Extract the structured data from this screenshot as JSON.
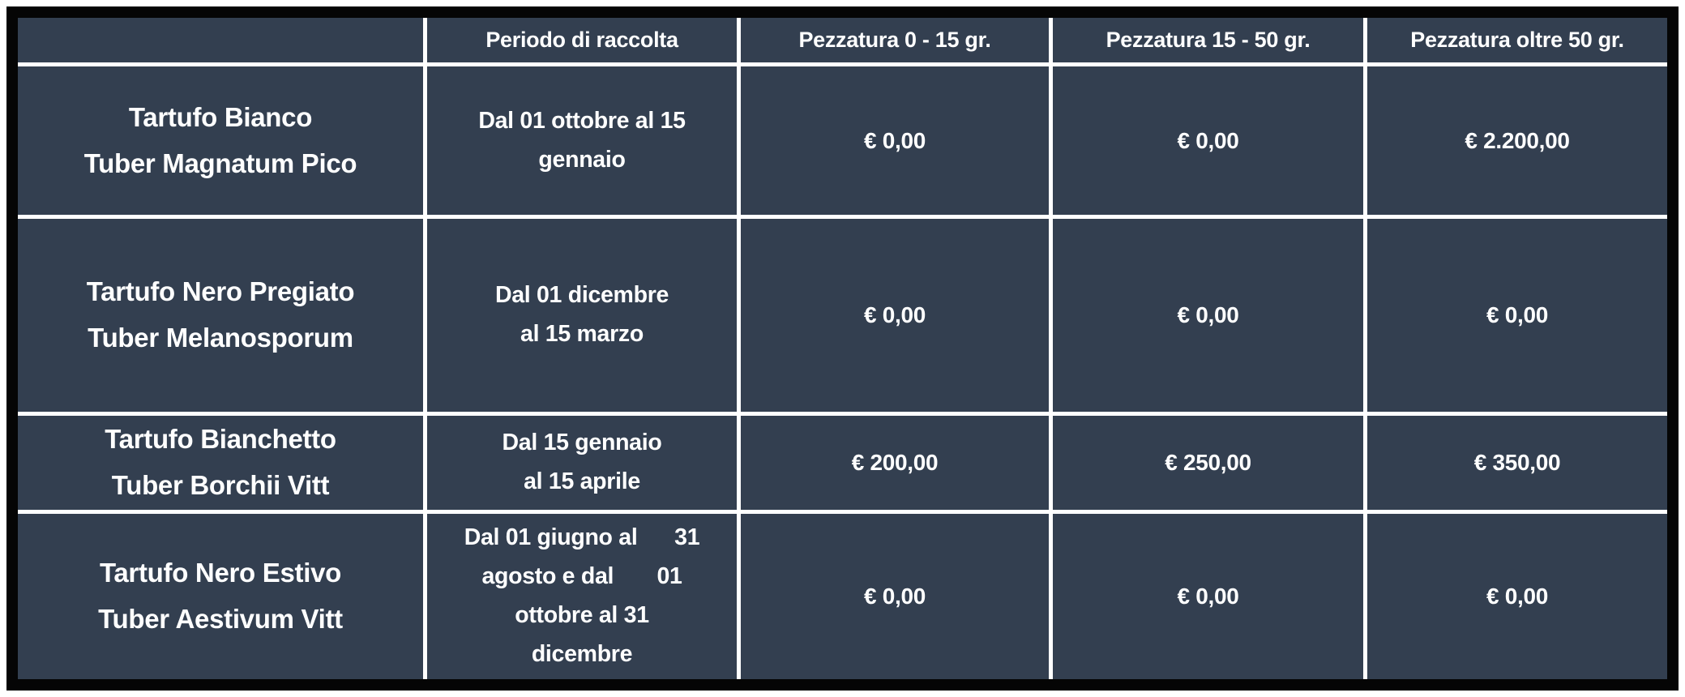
{
  "table": {
    "headers": {
      "corner": "",
      "period": "Periodo di raccolta",
      "size_small": "Pezzatura 0 - 15 gr.",
      "size_medium": "Pezzatura 15 - 50 gr.",
      "size_large": "Pezzatura oltre 50 gr."
    },
    "rows": [
      {
        "name_lines": [
          "Tartufo Bianco",
          "Tuber Magnatum Pico"
        ],
        "period_lines": [
          "Dal 01 ottobre al 15",
          "gennaio"
        ],
        "prices": [
          "€ 0,00",
          "€ 0,00",
          "€ 2.200,00"
        ]
      },
      {
        "name_lines": [
          "Tartufo Nero Pregiato",
          "Tuber Melanosporum"
        ],
        "period_lines": [
          "Dal 01 dicembre",
          "al 15 marzo"
        ],
        "prices": [
          "€ 0,00",
          "€ 0,00",
          "€ 0,00"
        ]
      },
      {
        "name_lines": [
          "Tartufo Bianchetto",
          "Tuber Borchii Vitt"
        ],
        "period_lines": [
          "Dal 15 gennaio",
          "al 15 aprile"
        ],
        "prices": [
          "€ 200,00",
          "€ 250,00",
          "€ 350,00"
        ]
      },
      {
        "name_lines": [
          "Tartufo Nero Estivo",
          "Tuber Aestivum Vitt"
        ],
        "period_lines": [
          "Dal 01 giugno al      31",
          "agosto e dal       01",
          "ottobre al 31",
          "dicembre"
        ],
        "prices": [
          "€ 0,00",
          "€ 0,00",
          "€ 0,00"
        ]
      }
    ]
  },
  "colors": {
    "cell_background": "#333f50",
    "grid_line": "#ffffff",
    "outer_border": "#050505",
    "text": "#ffffff",
    "page_background": "#ffffff"
  }
}
